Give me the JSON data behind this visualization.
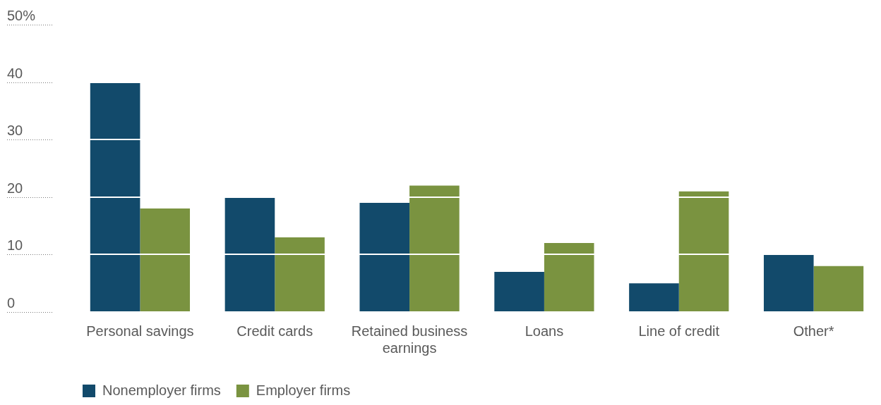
{
  "chart_data": {
    "type": "bar",
    "categories": [
      "Personal savings",
      "Credit cards",
      "Retained business earnings",
      "Loans",
      "Line of credit",
      "Other*"
    ],
    "series": [
      {
        "name": "Nonemployer firms",
        "color": "#124a6b",
        "values": [
          40,
          20,
          19,
          7,
          5,
          10
        ]
      },
      {
        "name": "Employer firms",
        "color": "#7a9340",
        "values": [
          18,
          13,
          22,
          12,
          21,
          8
        ]
      }
    ],
    "ylim": [
      0,
      50
    ],
    "yticks": [
      0,
      10,
      20,
      30,
      40,
      {
        "value": 50,
        "label": "50%"
      }
    ],
    "grid": "y",
    "legend": "bottom left"
  }
}
